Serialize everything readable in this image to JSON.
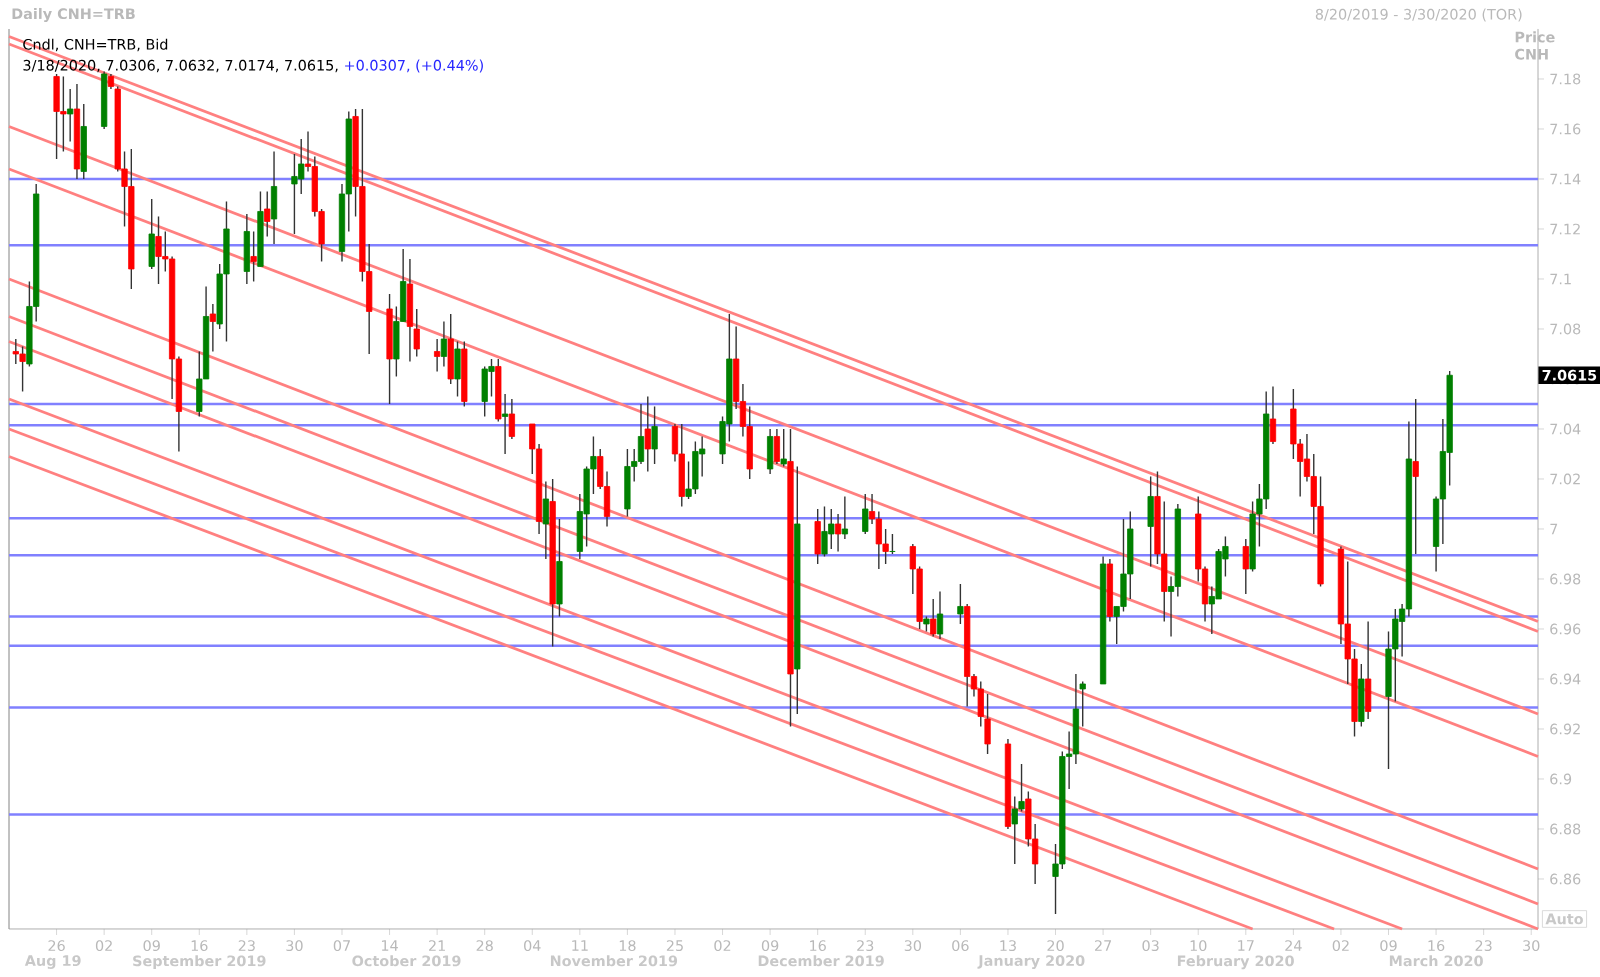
{
  "chart_data": {
    "type": "candlestick",
    "title": "Daily CNH=TRB",
    "subtitle": "8/20/2019 - 3/30/2020 (TOR)",
    "ylabel": "Price CNH",
    "legend_title": "Cndl, CNH=TRB, Bid",
    "annotations": [
      "3/18/2020, 7.0306, 7.0632, 7.0174, 7.0615,",
      "+0.0307, (+0.44%)",
      "7.0615",
      "Aug 19",
      "September 2019",
      "October 2019",
      "November 2019",
      "December 2019",
      "January 2020",
      "February 2020",
      "March 2020",
      "Auto"
    ],
    "xlim": [
      "2019-08-19",
      "2020-03-31"
    ],
    "ylim": [
      6.84,
      7.2
    ],
    "xticks": [
      {
        "value": "2019-08-26",
        "label": "26"
      },
      {
        "value": "2019-09-02",
        "label": "02"
      },
      {
        "value": "2019-09-09",
        "label": "09"
      },
      {
        "value": "2019-09-16",
        "label": "16"
      },
      {
        "value": "2019-09-23",
        "label": "23"
      },
      {
        "value": "2019-09-30",
        "label": "30"
      },
      {
        "value": "2019-10-07",
        "label": "07"
      },
      {
        "value": "2019-10-14",
        "label": "14"
      },
      {
        "value": "2019-10-21",
        "label": "21"
      },
      {
        "value": "2019-10-28",
        "label": "28"
      },
      {
        "value": "2019-11-04",
        "label": "04"
      },
      {
        "value": "2019-11-11",
        "label": "11"
      },
      {
        "value": "2019-11-18",
        "label": "18"
      },
      {
        "value": "2019-11-25",
        "label": "25"
      },
      {
        "value": "2019-12-02",
        "label": "02"
      },
      {
        "value": "2019-12-09",
        "label": "09"
      },
      {
        "value": "2019-12-16",
        "label": "16"
      },
      {
        "value": "2019-12-23",
        "label": "23"
      },
      {
        "value": "2019-12-30",
        "label": "30"
      },
      {
        "value": "2020-01-06",
        "label": "06"
      },
      {
        "value": "2020-01-13",
        "label": "13"
      },
      {
        "value": "2020-01-20",
        "label": "20"
      },
      {
        "value": "2020-01-27",
        "label": "27"
      },
      {
        "value": "2020-02-03",
        "label": "03"
      },
      {
        "value": "2020-02-10",
        "label": "10"
      },
      {
        "value": "2020-02-17",
        "label": "17"
      },
      {
        "value": "2020-02-24",
        "label": "24"
      },
      {
        "value": "2020-03-02",
        "label": "02"
      },
      {
        "value": "2020-03-09",
        "label": "09"
      },
      {
        "value": "2020-03-16",
        "label": "16"
      },
      {
        "value": "2020-03-23",
        "label": "23"
      },
      {
        "value": "2020-03-30",
        "label": "30"
      }
    ],
    "yticks": [
      6.86,
      6.88,
      6.9,
      6.92,
      6.94,
      6.96,
      6.98,
      7,
      7.02,
      7.04,
      7.06,
      7.08,
      7.1,
      7.12,
      7.14,
      7.16,
      7.18
    ],
    "x": [
      "2019-08-20",
      "2019-08-21",
      "2019-08-22",
      "2019-08-23",
      "2019-08-26",
      "2019-08-27",
      "2019-08-28",
      "2019-08-29",
      "2019-08-30",
      "2019-09-02",
      "2019-09-03",
      "2019-09-04",
      "2019-09-05",
      "2019-09-06",
      "2019-09-09",
      "2019-09-10",
      "2019-09-11",
      "2019-09-12",
      "2019-09-13",
      "2019-09-16",
      "2019-09-17",
      "2019-09-18",
      "2019-09-19",
      "2019-09-20",
      "2019-09-23",
      "2019-09-24",
      "2019-09-25",
      "2019-09-26",
      "2019-09-27",
      "2019-09-30",
      "2019-10-01",
      "2019-10-02",
      "2019-10-03",
      "2019-10-04",
      "2019-10-07",
      "2019-10-08",
      "2019-10-09",
      "2019-10-10",
      "2019-10-11",
      "2019-10-14",
      "2019-10-15",
      "2019-10-16",
      "2019-10-17",
      "2019-10-18",
      "2019-10-21",
      "2019-10-22",
      "2019-10-23",
      "2019-10-24",
      "2019-10-25",
      "2019-10-28",
      "2019-10-29",
      "2019-10-30",
      "2019-10-31",
      "2019-11-01",
      "2019-11-04",
      "2019-11-05",
      "2019-11-06",
      "2019-11-07",
      "2019-11-08",
      "2019-11-11",
      "2019-11-12",
      "2019-11-13",
      "2019-11-14",
      "2019-11-15",
      "2019-11-18",
      "2019-11-19",
      "2019-11-20",
      "2019-11-21",
      "2019-11-22",
      "2019-11-25",
      "2019-11-26",
      "2019-11-27",
      "2019-11-28",
      "2019-11-29",
      "2019-12-02",
      "2019-12-03",
      "2019-12-04",
      "2019-12-05",
      "2019-12-06",
      "2019-12-09",
      "2019-12-10",
      "2019-12-11",
      "2019-12-12",
      "2019-12-13",
      "2019-12-16",
      "2019-12-17",
      "2019-12-18",
      "2019-12-19",
      "2019-12-20",
      "2019-12-23",
      "2019-12-24",
      "2019-12-25",
      "2019-12-26",
      "2019-12-27",
      "2019-12-30",
      "2019-12-31",
      "2020-01-01",
      "2020-01-02",
      "2020-01-03",
      "2020-01-06",
      "2020-01-07",
      "2020-01-08",
      "2020-01-09",
      "2020-01-10",
      "2020-01-13",
      "2020-01-14",
      "2020-01-15",
      "2020-01-16",
      "2020-01-17",
      "2020-01-20",
      "2020-01-21",
      "2020-01-22",
      "2020-01-23",
      "2020-01-24",
      "2020-01-27",
      "2020-01-28",
      "2020-01-29",
      "2020-01-30",
      "2020-01-31",
      "2020-02-03",
      "2020-02-04",
      "2020-02-05",
      "2020-02-06",
      "2020-02-07",
      "2020-02-10",
      "2020-02-11",
      "2020-02-12",
      "2020-02-13",
      "2020-02-14",
      "2020-02-17",
      "2020-02-18",
      "2020-02-19",
      "2020-02-20",
      "2020-02-21",
      "2020-02-24",
      "2020-02-25",
      "2020-02-26",
      "2020-02-27",
      "2020-02-28",
      "2020-03-02",
      "2020-03-03",
      "2020-03-04",
      "2020-03-05",
      "2020-03-06",
      "2020-03-09",
      "2020-03-10",
      "2020-03-11",
      "2020-03-12",
      "2020-03-13",
      "2020-03-16",
      "2020-03-17",
      "2020-03-18"
    ],
    "ohlc": [
      [
        7.071,
        7.076,
        7.066,
        7.07
      ],
      [
        7.07,
        7.073,
        7.055,
        7.067
      ],
      [
        7.066,
        7.099,
        7.065,
        7.089
      ],
      [
        7.089,
        7.138,
        7.083,
        7.134
      ],
      [
        7.181,
        7.182,
        7.148,
        7.167
      ],
      [
        7.167,
        7.181,
        7.151,
        7.166
      ],
      [
        7.166,
        7.176,
        7.155,
        7.168
      ],
      [
        7.168,
        7.178,
        7.14,
        7.144
      ],
      [
        7.143,
        7.17,
        7.14,
        7.161
      ],
      [
        7.161,
        7.183,
        7.16,
        7.182
      ],
      [
        7.181,
        7.182,
        7.176,
        7.177
      ],
      [
        7.176,
        7.177,
        7.143,
        7.144
      ],
      [
        7.144,
        7.151,
        7.121,
        7.137
      ],
      [
        7.137,
        7.152,
        7.096,
        7.104
      ],
      [
        7.105,
        7.132,
        7.104,
        7.118
      ],
      [
        7.117,
        7.125,
        7.098,
        7.109
      ],
      [
        7.109,
        7.119,
        7.103,
        7.108
      ],
      [
        7.108,
        7.109,
        7.052,
        7.068
      ],
      [
        7.068,
        7.069,
        7.031,
        7.047
      ],
      [
        7.047,
        7.071,
        7.045,
        7.06
      ],
      [
        7.06,
        7.097,
        7.06,
        7.085
      ],
      [
        7.086,
        7.09,
        7.071,
        7.083
      ],
      [
        7.082,
        7.106,
        7.08,
        7.102
      ],
      [
        7.102,
        7.131,
        7.075,
        7.12
      ],
      [
        7.103,
        7.126,
        7.098,
        7.119
      ],
      [
        7.109,
        7.119,
        7.099,
        7.107
      ],
      [
        7.105,
        7.135,
        7.105,
        7.127
      ],
      [
        7.128,
        7.135,
        7.117,
        7.123
      ],
      [
        7.124,
        7.151,
        7.114,
        7.137
      ],
      [
        7.138,
        7.15,
        7.118,
        7.141
      ],
      [
        7.14,
        7.156,
        7.134,
        7.146
      ],
      [
        7.146,
        7.159,
        7.143,
        7.145
      ],
      [
        7.145,
        7.149,
        7.125,
        7.127
      ],
      [
        7.127,
        7.128,
        7.107,
        7.114
      ],
      [
        7.111,
        7.138,
        7.107,
        7.134
      ],
      [
        7.134,
        7.167,
        7.119,
        7.164
      ],
      [
        7.165,
        7.168,
        7.125,
        7.137
      ],
      [
        7.137,
        7.168,
        7.099,
        7.103
      ],
      [
        7.103,
        7.114,
        7.07,
        7.087
      ],
      [
        7.088,
        7.094,
        7.05,
        7.068
      ],
      [
        7.068,
        7.089,
        7.061,
        7.083
      ],
      [
        7.083,
        7.112,
        7.083,
        7.099
      ],
      [
        7.098,
        7.108,
        7.067,
        7.081
      ],
      [
        7.08,
        7.088,
        7.069,
        7.072
      ],
      [
        7.071,
        7.076,
        7.063,
        7.069
      ],
      [
        7.069,
        7.083,
        7.065,
        7.076
      ],
      [
        7.076,
        7.086,
        7.058,
        7.06
      ],
      [
        7.06,
        7.075,
        7.053,
        7.072
      ],
      [
        7.072,
        7.075,
        7.049,
        7.051
      ],
      [
        7.051,
        7.065,
        7.045,
        7.064
      ],
      [
        7.063,
        7.068,
        7.053,
        7.065
      ],
      [
        7.065,
        7.068,
        7.043,
        7.044
      ],
      [
        7.045,
        7.054,
        7.03,
        7.046
      ],
      [
        7.046,
        7.052,
        7.036,
        7.037
      ],
      [
        7.042,
        7.042,
        7.022,
        7.032
      ],
      [
        7.032,
        7.034,
        6.998,
        7.003
      ],
      [
        7.002,
        7.019,
        6.988,
        7.012
      ],
      [
        7.011,
        7.02,
        6.953,
        6.97
      ],
      [
        6.97,
        7.004,
        6.965,
        6.987
      ],
      [
        6.991,
        7.014,
        6.988,
        7.007
      ],
      [
        7.006,
        7.025,
        6.993,
        7.024
      ],
      [
        7.024,
        7.037,
        7.014,
        7.029
      ],
      [
        7.029,
        7.032,
        7.016,
        7.017
      ],
      [
        7.017,
        7.023,
        7.001,
        7.005
      ],
      [
        7.008,
        7.032,
        7.005,
        7.025
      ],
      [
        7.025,
        7.032,
        7.019,
        7.027
      ],
      [
        7.027,
        7.05,
        7.026,
        7.037
      ],
      [
        7.04,
        7.053,
        7.023,
        7.032
      ],
      [
        7.032,
        7.049,
        7.026,
        7.041
      ],
      [
        7.041,
        7.042,
        7.027,
        7.03
      ],
      [
        7.03,
        7.042,
        7.009,
        7.013
      ],
      [
        7.013,
        7.027,
        7.012,
        7.016
      ],
      [
        7.016,
        7.035,
        7.014,
        7.031
      ],
      [
        7.03,
        7.037,
        7.021,
        7.032
      ],
      [
        7.03,
        7.045,
        7.026,
        7.043
      ],
      [
        7.042,
        7.086,
        7.035,
        7.068
      ],
      [
        7.068,
        7.081,
        7.048,
        7.051
      ],
      [
        7.051,
        7.058,
        7.037,
        7.041
      ],
      [
        7.041,
        7.049,
        7.02,
        7.024
      ],
      [
        7.024,
        7.04,
        7.022,
        7.037
      ],
      [
        7.037,
        7.04,
        7.026,
        7.027
      ],
      [
        7.026,
        7.04,
        7.025,
        7.028
      ],
      [
        7.027,
        7.04,
        6.921,
        6.942
      ],
      [
        6.944,
        7.025,
        6.926,
        7.002
      ],
      [
        7.003,
        7.008,
        6.986,
        6.99
      ],
      [
        6.99,
        7.009,
        6.989,
        6.999
      ],
      [
        6.998,
        7.008,
        6.992,
        7.002
      ],
      [
        7.002,
        7.006,
        6.991,
        6.998
      ],
      [
        6.998,
        7.013,
        6.996,
        7.0
      ],
      [
        6.999,
        7.014,
        6.998,
        7.008
      ],
      [
        7.007,
        7.014,
        7.002,
        7.004
      ],
      [
        7.004,
        7.007,
        6.984,
        6.994
      ],
      [
        6.994,
        7.0,
        6.986,
        6.991
      ],
      [
        6.991,
        6.998,
        6.99,
        6.991
      ],
      [
        6.993,
        6.994,
        6.974,
        6.984
      ],
      [
        6.984,
        6.985,
        6.96,
        6.963
      ],
      [
        6.962,
        6.965,
        6.959,
        6.964
      ],
      [
        6.964,
        6.972,
        6.957,
        6.958
      ],
      [
        6.958,
        6.975,
        6.956,
        6.966
      ],
      [
        6.966,
        6.978,
        6.962,
        6.969
      ],
      [
        6.969,
        6.97,
        6.929,
        6.941
      ],
      [
        6.941,
        6.942,
        6.933,
        6.936
      ],
      [
        6.936,
        6.939,
        6.921,
        6.925
      ],
      [
        6.924,
        6.934,
        6.91,
        6.914
      ],
      [
        6.914,
        6.916,
        6.88,
        6.881
      ],
      [
        6.882,
        6.893,
        6.866,
        6.888
      ],
      [
        6.888,
        6.906,
        6.887,
        6.891
      ],
      [
        6.892,
        6.895,
        6.873,
        6.876
      ],
      [
        6.876,
        6.882,
        6.858,
        6.866
      ],
      [
        6.861,
        6.874,
        6.846,
        6.866
      ],
      [
        6.866,
        6.911,
        6.864,
        6.909
      ],
      [
        6.909,
        6.919,
        6.896,
        6.91
      ],
      [
        6.91,
        6.942,
        6.906,
        6.928
      ],
      [
        6.936,
        6.939,
        6.921,
        6.938
      ],
      [
        6.938,
        6.989,
        6.938,
        6.986
      ],
      [
        6.986,
        6.988,
        6.963,
        6.965
      ],
      [
        6.965,
        6.969,
        6.954,
        6.969
      ],
      [
        6.969,
        7.004,
        6.967,
        6.982
      ],
      [
        6.982,
        7.007,
        6.972,
        7.0
      ],
      [
        7.001,
        7.021,
        6.985,
        7.013
      ],
      [
        7.013,
        7.023,
        6.986,
        6.99
      ],
      [
        6.99,
        7.011,
        6.963,
        6.975
      ],
      [
        6.975,
        6.981,
        6.957,
        6.977
      ],
      [
        6.977,
        7.01,
        6.973,
        7.008
      ],
      [
        7.006,
        7.013,
        6.979,
        6.984
      ],
      [
        6.984,
        6.985,
        6.963,
        6.97
      ],
      [
        6.97,
        6.977,
        6.958,
        6.973
      ],
      [
        6.972,
        6.992,
        6.972,
        6.991
      ],
      [
        6.988,
        6.997,
        6.981,
        6.993
      ],
      [
        6.993,
        6.996,
        6.974,
        6.984
      ],
      [
        6.984,
        7.011,
        6.983,
        7.006
      ],
      [
        7.006,
        7.018,
        6.993,
        7.012
      ],
      [
        7.012,
        7.055,
        7.008,
        7.046
      ],
      [
        7.044,
        7.057,
        7.034,
        7.035
      ],
      [
        7.048,
        7.056,
        7.028,
        7.034
      ],
      [
        7.034,
        7.036,
        7.013,
        7.027
      ],
      [
        7.028,
        7.038,
        7.019,
        7.021
      ],
      [
        7.021,
        7.03,
        6.998,
        7.009
      ],
      [
        7.009,
        7.021,
        6.977,
        6.978
      ],
      [
        6.992,
        6.993,
        6.954,
        6.962
      ],
      [
        6.962,
        6.987,
        6.938,
        6.948
      ],
      [
        6.948,
        6.952,
        6.917,
        6.923
      ],
      [
        6.923,
        6.946,
        6.921,
        6.94
      ],
      [
        6.94,
        6.963,
        6.924,
        6.927
      ],
      [
        6.933,
        6.959,
        6.904,
        6.952
      ],
      [
        6.952,
        6.968,
        6.931,
        6.964
      ],
      [
        6.963,
        6.97,
        6.949,
        6.968
      ],
      [
        6.968,
        7.043,
        6.965,
        7.028
      ],
      [
        7.027,
        7.052,
        6.99,
        7.021
      ],
      [
        6.993,
        7.013,
        6.983,
        7.012
      ],
      [
        7.012,
        7.044,
        6.994,
        7.031
      ],
      [
        7.0306,
        7.0632,
        7.0174,
        7.0615
      ]
    ],
    "colors": [
      "#ff0000",
      "#ff0000",
      "#008000",
      "#008000",
      "#ff0000",
      "#ff0000",
      "#008000",
      "#ff0000",
      "#008000",
      "#008000",
      "#ff0000",
      "#ff0000",
      "#ff0000",
      "#ff0000",
      "#008000",
      "#ff0000",
      "#ff0000",
      "#ff0000",
      "#ff0000",
      "#008000",
      "#008000",
      "#ff0000",
      "#008000",
      "#008000",
      "#008000",
      "#ff0000",
      "#008000",
      "#ff0000",
      "#008000",
      "#008000",
      "#008000",
      "#ff0000",
      "#ff0000",
      "#ff0000",
      "#008000",
      "#008000",
      "#ff0000",
      "#ff0000",
      "#ff0000",
      "#ff0000",
      "#008000",
      "#008000",
      "#ff0000",
      "#ff0000",
      "#ff0000",
      "#008000",
      "#ff0000",
      "#008000",
      "#ff0000",
      "#008000",
      "#008000",
      "#ff0000",
      "#008000",
      "#ff0000",
      "#ff0000",
      "#ff0000",
      "#008000",
      "#ff0000",
      "#008000",
      "#008000",
      "#008000",
      "#008000",
      "#ff0000",
      "#ff0000",
      "#008000",
      "#008000",
      "#008000",
      "#ff0000",
      "#008000",
      "#ff0000",
      "#ff0000",
      "#008000",
      "#008000",
      "#008000",
      "#008000",
      "#008000",
      "#ff0000",
      "#ff0000",
      "#ff0000",
      "#008000",
      "#ff0000",
      "#008000",
      "#ff0000",
      "#008000",
      "#ff0000",
      "#008000",
      "#008000",
      "#ff0000",
      "#008000",
      "#008000",
      "#ff0000",
      "#ff0000",
      "#ff0000",
      "#008000",
      "#ff0000",
      "#ff0000",
      "#008000",
      "#ff0000",
      "#008000",
      "#008000",
      "#ff0000",
      "#ff0000",
      "#ff0000",
      "#ff0000",
      "#ff0000",
      "#008000",
      "#008000",
      "#ff0000",
      "#ff0000",
      "#008000",
      "#008000",
      "#008000",
      "#008000",
      "#008000",
      "#008000",
      "#ff0000",
      "#008000",
      "#008000",
      "#008000",
      "#008000",
      "#ff0000",
      "#ff0000",
      "#008000",
      "#008000",
      "#ff0000",
      "#ff0000",
      "#008000",
      "#008000",
      "#008000",
      "#ff0000",
      "#008000",
      "#008000",
      "#008000",
      "#ff0000",
      "#ff0000",
      "#ff0000",
      "#ff0000",
      "#ff0000",
      "#ff0000",
      "#ff0000",
      "#ff0000",
      "#ff0000",
      "#008000",
      "#ff0000",
      "#008000",
      "#008000",
      "#008000",
      "#008000",
      "#ff0000",
      "#008000",
      "#008000",
      "#008000"
    ],
    "series": [
      {
        "type": "line",
        "color": "#ff8080",
        "x": [
          "2019-08-19",
          "2020-03-31"
        ],
        "values": [
          7.197,
          6.963
        ]
      },
      {
        "type": "line",
        "color": "#ff8080",
        "x": [
          "2019-08-19",
          "2020-03-31"
        ],
        "values": [
          7.194,
          6.959
        ]
      },
      {
        "type": "line",
        "color": "#ff8080",
        "x": [
          "2019-08-19",
          "2020-03-31"
        ],
        "values": [
          7.161,
          6.926
        ]
      },
      {
        "type": "line",
        "color": "#ff8080",
        "x": [
          "2019-08-19",
          "2020-03-31"
        ],
        "values": [
          7.144,
          6.909
        ]
      },
      {
        "type": "line",
        "color": "#ff8080",
        "x": [
          "2019-08-19",
          "2020-03-31"
        ],
        "values": [
          7.1,
          6.864
        ]
      },
      {
        "type": "line",
        "color": "#ff8080",
        "x": [
          "2019-08-19",
          "2020-03-31"
        ],
        "values": [
          7.085,
          6.85
        ]
      },
      {
        "type": "line",
        "color": "#ff8080",
        "x": [
          "2019-08-19",
          "2020-03-31"
        ],
        "values": [
          7.075,
          6.84
        ]
      },
      {
        "type": "line",
        "color": "#ff8080",
        "x": [
          "2019-08-19",
          "2020-03-11"
        ],
        "values": [
          7.052,
          6.84
        ]
      },
      {
        "type": "line",
        "color": "#ff8080",
        "x": [
          "2019-08-19",
          "2020-03-01"
        ],
        "values": [
          7.04,
          6.84
        ]
      },
      {
        "type": "line",
        "color": "#ff8080",
        "x": [
          "2019-08-19",
          "2020-02-18"
        ],
        "values": [
          7.029,
          6.84
        ]
      }
    ],
    "ref_lines": [
      {
        "axis": "y",
        "value": 7.14,
        "color": "#8080ff"
      },
      {
        "axis": "y",
        "value": 7.1135,
        "color": "#8080ff"
      },
      {
        "axis": "y",
        "value": 7.05,
        "color": "#8080ff"
      },
      {
        "axis": "y",
        "value": 7.0415,
        "color": "#8080ff"
      },
      {
        "axis": "y",
        "value": 7.0043,
        "color": "#8080ff"
      },
      {
        "axis": "y",
        "value": 6.9895,
        "color": "#8080ff"
      },
      {
        "axis": "y",
        "value": 6.965,
        "color": "#8080ff"
      },
      {
        "axis": "y",
        "value": 6.9533,
        "color": "#8080ff"
      },
      {
        "axis": "y",
        "value": 6.9286,
        "color": "#8080ff"
      },
      {
        "axis": "y",
        "value": 6.8858,
        "color": "#8080ff"
      }
    ]
  }
}
